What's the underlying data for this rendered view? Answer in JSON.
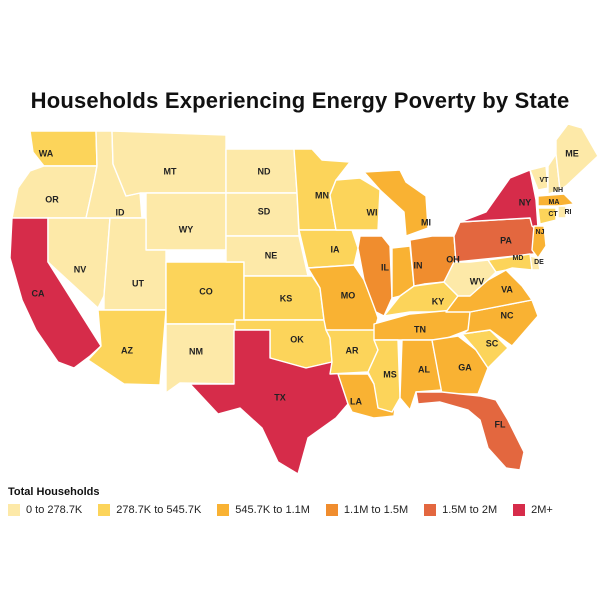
{
  "title": "Households Experiencing Energy Poverty by State",
  "legend": {
    "title": "Total Households",
    "items": [
      {
        "label": "0 to 278.7K",
        "color": "#fde9a8"
      },
      {
        "label": "278.7K to 545.7K",
        "color": "#fcd45a"
      },
      {
        "label": "545.7K to 1.1M",
        "color": "#f9b233"
      },
      {
        "label": "1.1M to 1.5M",
        "color": "#f08d2e"
      },
      {
        "label": "1.5M to 2M",
        "color": "#e3673f"
      },
      {
        "label": "2M+",
        "color": "#d62c4a"
      }
    ]
  },
  "states": {
    "WA": {
      "label": "WA",
      "tier": 1
    },
    "OR": {
      "label": "OR",
      "tier": 0
    },
    "CA": {
      "label": "CA",
      "tier": 5
    },
    "NV": {
      "label": "NV",
      "tier": 0
    },
    "ID": {
      "label": "ID",
      "tier": 0
    },
    "MT": {
      "label": "MT",
      "tier": 0
    },
    "WY": {
      "label": "WY",
      "tier": 0
    },
    "UT": {
      "label": "UT",
      "tier": 0
    },
    "AZ": {
      "label": "AZ",
      "tier": 1
    },
    "CO": {
      "label": "CO",
      "tier": 1
    },
    "NM": {
      "label": "NM",
      "tier": 0
    },
    "ND": {
      "label": "ND",
      "tier": 0
    },
    "SD": {
      "label": "SD",
      "tier": 0
    },
    "NE": {
      "label": "NE",
      "tier": 0
    },
    "KS": {
      "label": "KS",
      "tier": 1
    },
    "OK": {
      "label": "OK",
      "tier": 1
    },
    "TX": {
      "label": "TX",
      "tier": 5
    },
    "MN": {
      "label": "MN",
      "tier": 1
    },
    "IA": {
      "label": "IA",
      "tier": 1
    },
    "MO": {
      "label": "MO",
      "tier": 2
    },
    "AR": {
      "label": "AR",
      "tier": 1
    },
    "LA": {
      "label": "LA",
      "tier": 2
    },
    "WI": {
      "label": "WI",
      "tier": 1
    },
    "IL": {
      "label": "IL",
      "tier": 3
    },
    "MI": {
      "label": "MI",
      "tier": 2
    },
    "IN": {
      "label": "IN",
      "tier": 2
    },
    "OH": {
      "label": "OH",
      "tier": 3
    },
    "KY": {
      "label": "KY",
      "tier": 1
    },
    "TN": {
      "label": "TN",
      "tier": 2
    },
    "MS": {
      "label": "MS",
      "tier": 1
    },
    "AL": {
      "label": "AL",
      "tier": 2
    },
    "GA": {
      "label": "GA",
      "tier": 2
    },
    "FL": {
      "label": "FL",
      "tier": 4
    },
    "SC": {
      "label": "SC",
      "tier": 1
    },
    "NC": {
      "label": "NC",
      "tier": 2
    },
    "VA": {
      "label": "VA",
      "tier": 2
    },
    "WV": {
      "label": "WV",
      "tier": 0
    },
    "PA": {
      "label": "PA",
      "tier": 4
    },
    "NY": {
      "label": "NY",
      "tier": 5
    },
    "VT": {
      "label": "VT",
      "tier": 0
    },
    "NH": {
      "label": "NH",
      "tier": 0
    },
    "ME": {
      "label": "ME",
      "tier": 0
    },
    "MA": {
      "label": "MA",
      "tier": 2
    },
    "CT": {
      "label": "CT",
      "tier": 1
    },
    "RI": {
      "label": "RI",
      "tier": 0
    },
    "NJ": {
      "label": "NJ",
      "tier": 2
    },
    "DE": {
      "label": "DE",
      "tier": 0
    },
    "MD": {
      "label": "MD",
      "tier": 1
    }
  }
}
